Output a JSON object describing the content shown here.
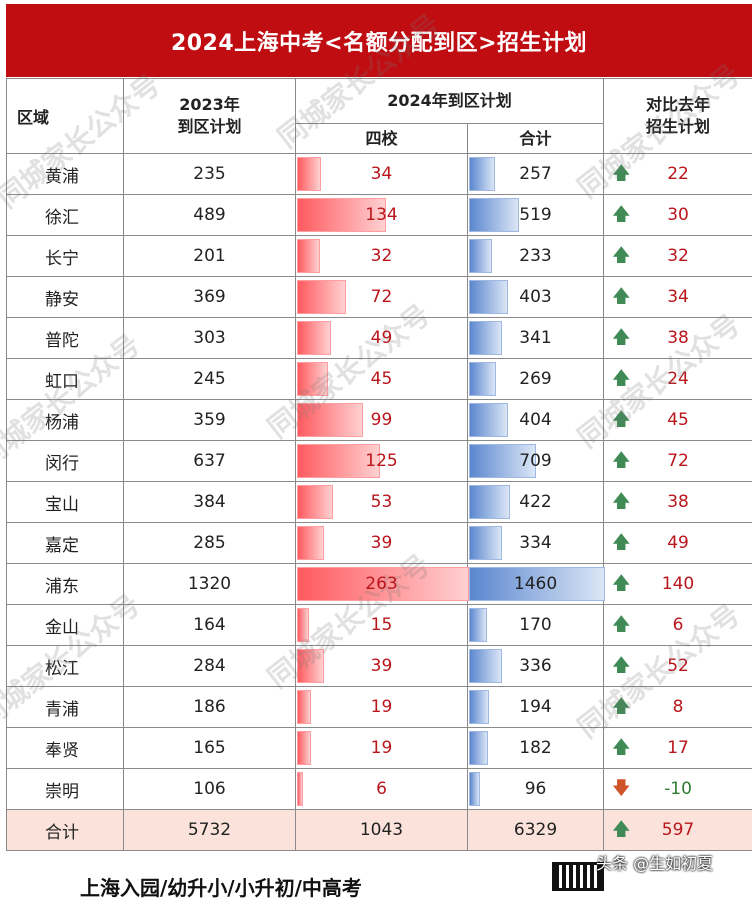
{
  "title": "2024上海中考<名额分配到区>招生计划",
  "headers": {
    "region": "区域",
    "plan_2023_line1": "2023年",
    "plan_2023_line2": "到区计划",
    "plan_2024": "2024年到区计划",
    "four_schools": "四校",
    "total": "合计",
    "compare_line1": "对比去年",
    "compare_line2": "招生计划"
  },
  "rows": [
    {
      "region": "黄浦",
      "plan2023": "235",
      "four": "34",
      "total": "257",
      "diff": "22",
      "dir": "up",
      "four_v": 34,
      "total_v": 257
    },
    {
      "region": "徐汇",
      "plan2023": "489",
      "four": "134",
      "total": "519",
      "diff": "30",
      "dir": "up",
      "four_v": 134,
      "total_v": 519
    },
    {
      "region": "长宁",
      "plan2023": "201",
      "four": "32",
      "total": "233",
      "diff": "32",
      "dir": "up",
      "four_v": 32,
      "total_v": 233
    },
    {
      "region": "静安",
      "plan2023": "369",
      "four": "72",
      "total": "403",
      "diff": "34",
      "dir": "up",
      "four_v": 72,
      "total_v": 403
    },
    {
      "region": "普陀",
      "plan2023": "303",
      "four": "49",
      "total": "341",
      "diff": "38",
      "dir": "up",
      "four_v": 49,
      "total_v": 341
    },
    {
      "region": "虹口",
      "plan2023": "245",
      "four": "45",
      "total": "269",
      "diff": "24",
      "dir": "up",
      "four_v": 45,
      "total_v": 269
    },
    {
      "region": "杨浦",
      "plan2023": "359",
      "four": "99",
      "total": "404",
      "diff": "45",
      "dir": "up",
      "four_v": 99,
      "total_v": 404
    },
    {
      "region": "闵行",
      "plan2023": "637",
      "four": "125",
      "total": "709",
      "diff": "72",
      "dir": "up",
      "four_v": 125,
      "total_v": 709
    },
    {
      "region": "宝山",
      "plan2023": "384",
      "four": "53",
      "total": "422",
      "diff": "38",
      "dir": "up",
      "four_v": 53,
      "total_v": 422
    },
    {
      "region": "嘉定",
      "plan2023": "285",
      "four": "39",
      "total": "334",
      "diff": "49",
      "dir": "up",
      "four_v": 39,
      "total_v": 334
    },
    {
      "region": "浦东",
      "plan2023": "1320",
      "four": "263",
      "total": "1460",
      "diff": "140",
      "dir": "up",
      "four_v": 263,
      "total_v": 1460
    },
    {
      "region": "金山",
      "plan2023": "164",
      "four": "15",
      "total": "170",
      "diff": "6",
      "dir": "up",
      "four_v": 15,
      "total_v": 170
    },
    {
      "region": "松江",
      "plan2023": "284",
      "four": "39",
      "total": "336",
      "diff": "52",
      "dir": "up",
      "four_v": 39,
      "total_v": 336
    },
    {
      "region": "青浦",
      "plan2023": "186",
      "four": "19",
      "total": "194",
      "diff": "8",
      "dir": "up",
      "four_v": 19,
      "total_v": 194
    },
    {
      "region": "奉贤",
      "plan2023": "165",
      "four": "19",
      "total": "182",
      "diff": "17",
      "dir": "up",
      "four_v": 19,
      "total_v": 182
    },
    {
      "region": "崇明",
      "plan2023": "106",
      "four": "6",
      "total": "96",
      "diff": "-10",
      "dir": "down",
      "four_v": 6,
      "total_v": 96
    }
  ],
  "total_row": {
    "region": "合计",
    "plan2023": "5732",
    "four": "1043",
    "total": "6329",
    "diff": "597",
    "dir": "up"
  },
  "max_four": 263,
  "max_total": 1460,
  "watermark_text": "同城家长公众号",
  "footer_text": "上海入园/幼升小/小升初/中高考",
  "author_text": "头条 @生如初夏",
  "colors": {
    "title_bg": "#c00d12",
    "red_bar": "#ff5a5f",
    "blue_bar": "#5b87cf",
    "diff_text": "#b9161c",
    "up_arrow": "#3f8a55",
    "down_arrow": "#d0542a",
    "total_row_bg": "#fbe3dc"
  },
  "icons": {
    "up": "arrow-up-icon",
    "down": "arrow-down-icon"
  }
}
